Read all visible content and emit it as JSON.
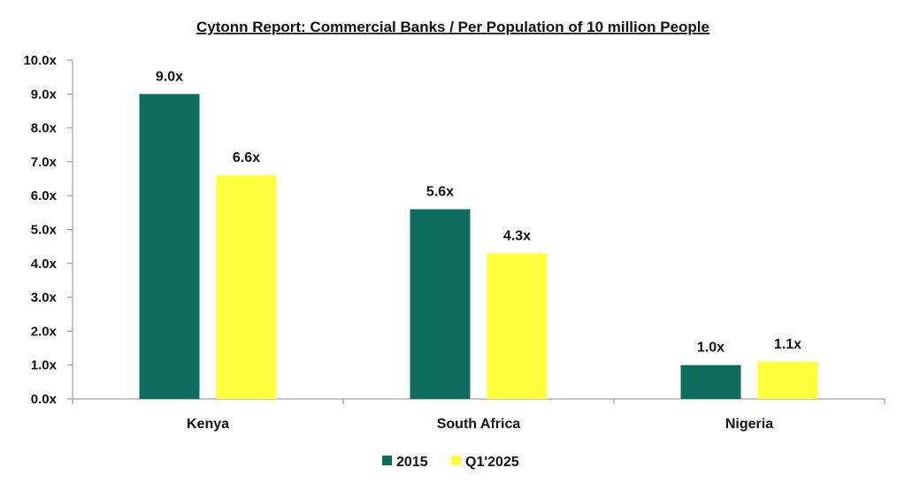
{
  "chart_data": {
    "type": "bar",
    "title": "Cytonn Report: Commercial Banks / Per Population of 10 million People",
    "categories": [
      "Kenya",
      "South Africa",
      "Nigeria"
    ],
    "series": [
      {
        "name": "2015",
        "values": [
          9.0,
          5.6,
          1.0
        ],
        "color": "#0E6E5C",
        "labels": [
          "9.0x",
          "5.6x",
          "1.0x"
        ]
      },
      {
        "name": "Q1'2025",
        "values": [
          6.6,
          4.3,
          1.1
        ],
        "color": "#FFFF3B",
        "labels": [
          "6.6x",
          "4.3x",
          "1.1x"
        ]
      }
    ],
    "ylim": [
      0,
      10
    ],
    "yticks": [
      "0.0x",
      "1.0x",
      "2.0x",
      "3.0x",
      "4.0x",
      "5.0x",
      "6.0x",
      "7.0x",
      "8.0x",
      "9.0x",
      "10.0x"
    ],
    "xlabel": "",
    "ylabel": "",
    "grid": false,
    "legend_position": "bottom"
  }
}
